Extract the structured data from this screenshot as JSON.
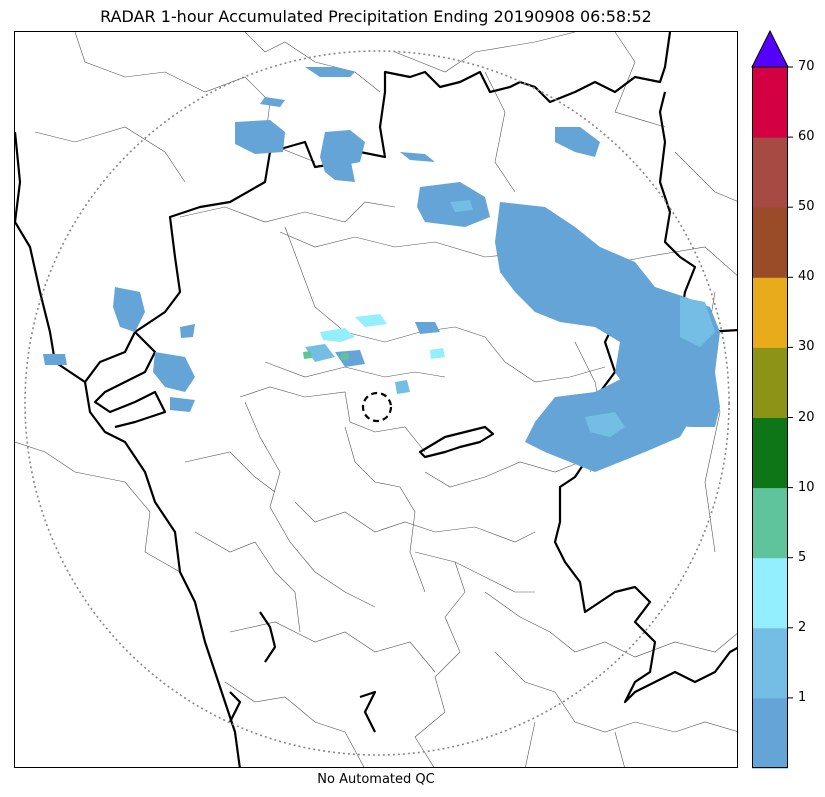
{
  "title": "RADAR 1-hour Accumulated Precipitation Ending 20190908 06:58:52",
  "footer": "No Automated QC",
  "map": {
    "radar_range_ring": "dotted-gray-circle",
    "radar_site_marker": "dashed-black-circle",
    "coastline_color": "#000000",
    "boundary_color": "#555555"
  },
  "colorbar": {
    "extend": "max",
    "extend_color": "#5500ff",
    "segments": [
      {
        "color": "#64a4d6"
      },
      {
        "color": "#74bde4"
      },
      {
        "color": "#93eefe"
      },
      {
        "color": "#5fc49b"
      },
      {
        "color": "#0f7617"
      },
      {
        "color": "#8d9317"
      },
      {
        "color": "#e8ab1b"
      },
      {
        "color": "#9a4c29"
      },
      {
        "color": "#a84a44"
      },
      {
        "color": "#d40044"
      }
    ],
    "tick_labels": [
      "1",
      "2",
      "5",
      "10",
      "20",
      "30",
      "40",
      "50",
      "60",
      "70"
    ]
  },
  "precip_colors": {
    "light": "#64a4d6",
    "moderate": "#74bde4",
    "cyan": "#93eefe",
    "green": "#5fc49b"
  }
}
